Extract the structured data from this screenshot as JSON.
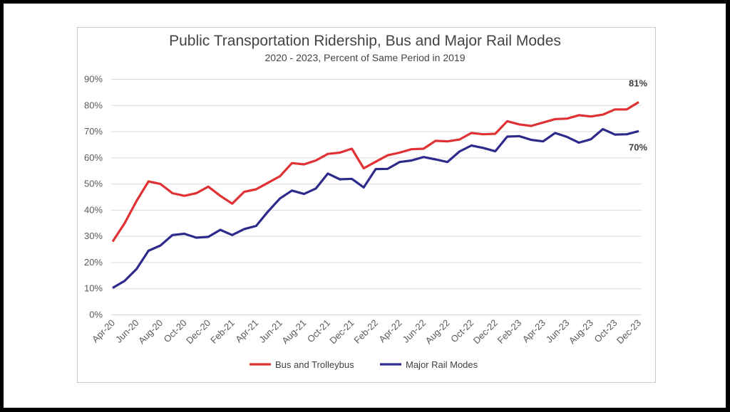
{
  "chart_data": {
    "type": "line",
    "title": "Public Transportation Ridership, Bus and Major Rail Modes",
    "subtitle": "2020 - 2023, Percent of Same Period in 2019",
    "xlabel": "",
    "ylabel": "",
    "ylim": [
      0,
      90
    ],
    "yticks": [
      "0%",
      "10%",
      "20%",
      "30%",
      "40%",
      "50%",
      "60%",
      "70%",
      "80%",
      "90%"
    ],
    "grid": true,
    "legend_position": "bottom",
    "x": [
      "Apr-20",
      "May-20",
      "Jun-20",
      "Jul-20",
      "Aug-20",
      "Sep-20",
      "Oct-20",
      "Nov-20",
      "Dec-20",
      "Jan-21",
      "Feb-21",
      "Mar-21",
      "Apr-21",
      "May-21",
      "Jun-21",
      "Jul-21",
      "Aug-21",
      "Sep-21",
      "Oct-21",
      "Nov-21",
      "Dec-21",
      "Jan-22",
      "Feb-22",
      "Mar-22",
      "Apr-22",
      "May-22",
      "Jun-22",
      "Jul-22",
      "Aug-22",
      "Sep-22",
      "Oct-22",
      "Nov-22",
      "Dec-22",
      "Jan-23",
      "Feb-23",
      "Mar-23",
      "Apr-23",
      "May-23",
      "Jun-23",
      "Jul-23",
      "Aug-23",
      "Sep-23",
      "Oct-23",
      "Nov-23",
      "Dec-23"
    ],
    "xtick_labels": [
      "Apr-20",
      "Jun-20",
      "Aug-20",
      "Oct-20",
      "Dec-20",
      "Feb-21",
      "Apr-21",
      "Jun-21",
      "Aug-21",
      "Oct-21",
      "Dec-21",
      "Feb-22",
      "Apr-22",
      "Jun-22",
      "Aug-22",
      "Oct-22",
      "Dec-22",
      "Feb-23",
      "Apr-23",
      "Jun-23",
      "Aug-23",
      "Oct-23",
      "Dec-23"
    ],
    "series": [
      {
        "name": "Bus and Trolleybus",
        "color": "#e03134",
        "end_label": "81%",
        "values": [
          28,
          35,
          43.5,
          51,
          50,
          46.5,
          45.5,
          46.5,
          49,
          45.5,
          42.5,
          47,
          48,
          50.5,
          53,
          58,
          57.5,
          59,
          61.5,
          62,
          63.5,
          56,
          58.5,
          61,
          62,
          63.3,
          63.5,
          66.5,
          66.3,
          67,
          69.5,
          69,
          69.2,
          74,
          72.8,
          72.2,
          73.5,
          74.8,
          75,
          76.3,
          75.8,
          76.5,
          78.5,
          78.5,
          81.3
        ]
      },
      {
        "name": "Major Rail Modes",
        "color": "#2e2a8c",
        "end_label": "70%",
        "values": [
          10.3,
          13,
          17.5,
          24.5,
          26.5,
          30.5,
          31,
          29.5,
          29.8,
          32.5,
          30.5,
          32.8,
          34,
          39.5,
          44.5,
          47.5,
          46.2,
          48.3,
          54,
          51.8,
          52,
          48.7,
          55.7,
          55.8,
          58.4,
          59,
          60.3,
          59.4,
          58.4,
          62.4,
          64.7,
          63.8,
          62.5,
          68.1,
          68.3,
          66.9,
          66.3,
          69.5,
          68,
          65.8,
          67.1,
          71,
          68.9,
          69,
          70.2
        ]
      }
    ]
  }
}
